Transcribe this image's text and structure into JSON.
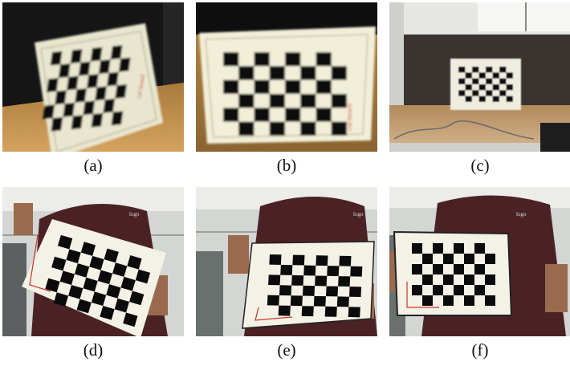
{
  "panels": [
    {
      "id": "a",
      "caption": "(a)",
      "board": {
        "cols": 8,
        "rows": 6
      }
    },
    {
      "id": "b",
      "caption": "(b)",
      "board": {
        "cols": 8,
        "rows": 6
      }
    },
    {
      "id": "c",
      "caption": "(c)",
      "board": {
        "cols": 8,
        "rows": 6
      }
    },
    {
      "id": "d",
      "caption": "(d)",
      "board": {
        "cols": 8,
        "rows": 6
      }
    },
    {
      "id": "e",
      "caption": "(e)",
      "board": {
        "cols": 8,
        "rows": 6
      }
    },
    {
      "id": "f",
      "caption": "(f)",
      "board": {
        "cols": 8,
        "rows": 6
      }
    }
  ],
  "colors": {
    "board_white": "#f4f1e6",
    "board_black": "#0b0b0b",
    "desk_wood": "#b98a48",
    "dark_wall": "#141414",
    "office_bg": "#cfd2cf",
    "shirt": "#4a2226",
    "skin": "#9a6a4e",
    "ink_red": "#c8352d"
  }
}
